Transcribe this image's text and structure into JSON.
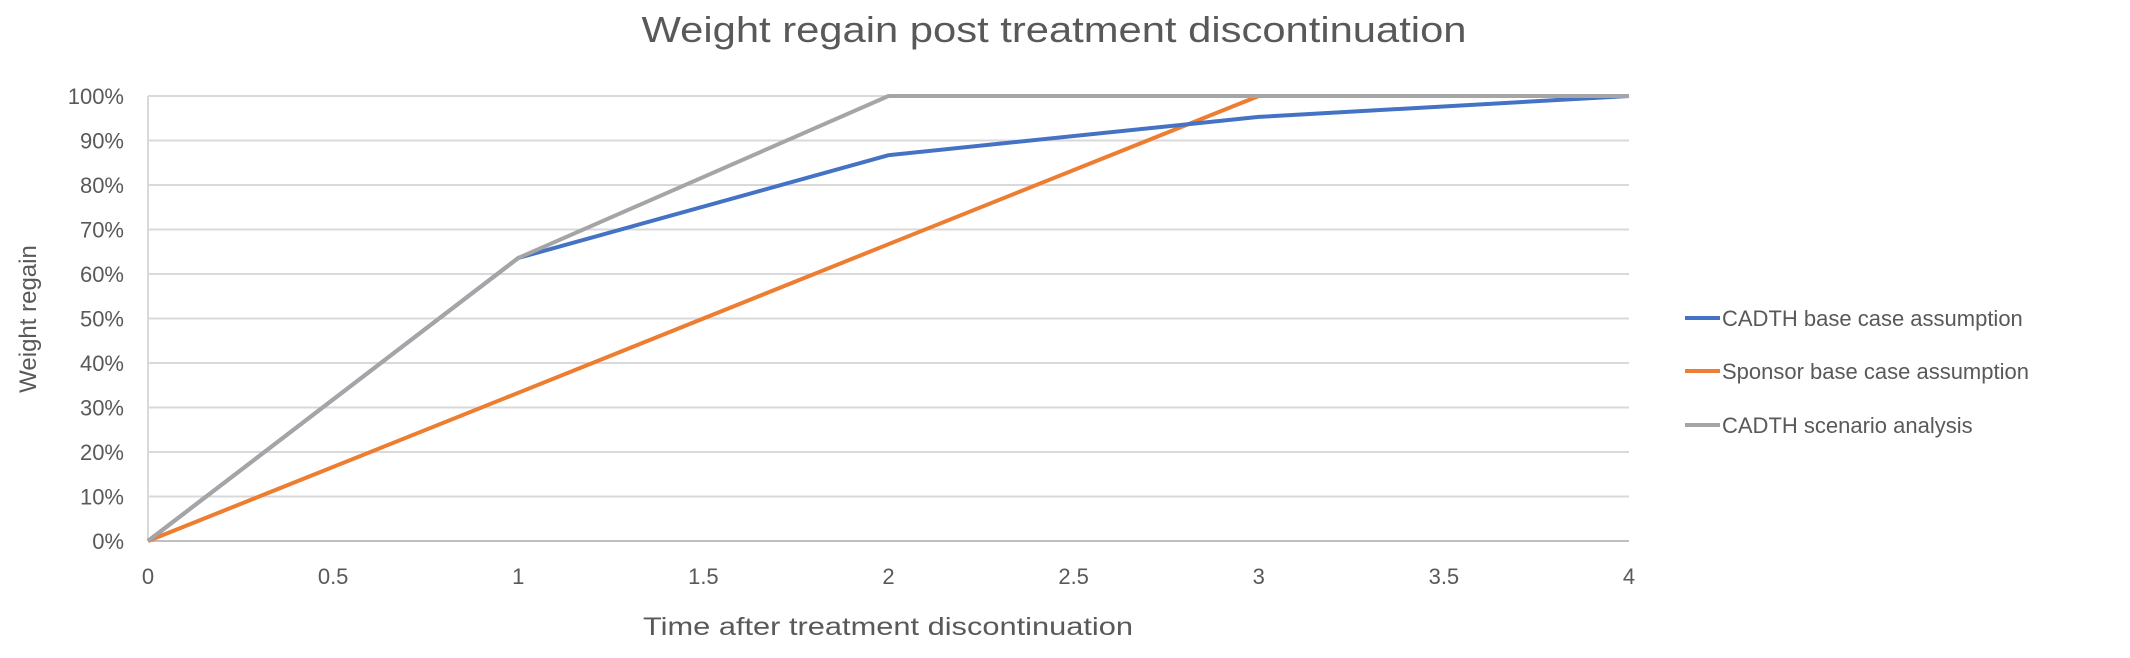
{
  "chart_data": {
    "type": "line",
    "title": "Weight regain post treatment discontinuation",
    "xlabel": "Time after treatment discontinuation",
    "ylabel": "Weight regain",
    "xlim": [
      0,
      4
    ],
    "ylim": [
      0,
      1
    ],
    "x_ticks": [
      0,
      0.5,
      1,
      1.5,
      2,
      2.5,
      3,
      3.5,
      4
    ],
    "x_tick_labels": [
      "0",
      "0.5",
      "1",
      "1.5",
      "2",
      "2.5",
      "3",
      "3.5",
      "4"
    ],
    "y_ticks": [
      0,
      0.1,
      0.2,
      0.3,
      0.4,
      0.5,
      0.6,
      0.7,
      0.8,
      0.9,
      1
    ],
    "y_tick_labels": [
      "0%",
      "10%",
      "20%",
      "30%",
      "40%",
      "50%",
      "60%",
      "70%",
      "80%",
      "90%",
      "100%"
    ],
    "grid": "horizontal",
    "legend_position": "right",
    "x": [
      0,
      1,
      2,
      3,
      4
    ],
    "series": [
      {
        "name": "CADTH base case assumption",
        "color": "#4472C4",
        "values": [
          0,
          0.636,
          0.867,
          0.953,
          1.0
        ]
      },
      {
        "name": "Sponsor base case assumption",
        "color": "#ED7D31",
        "values": [
          0,
          0.333,
          0.667,
          1.0,
          1.0
        ]
      },
      {
        "name": "CADTH scenario analysis",
        "color": "#A5A5A5",
        "values": [
          0,
          0.636,
          1.0,
          1.0,
          1.0
        ]
      }
    ]
  }
}
